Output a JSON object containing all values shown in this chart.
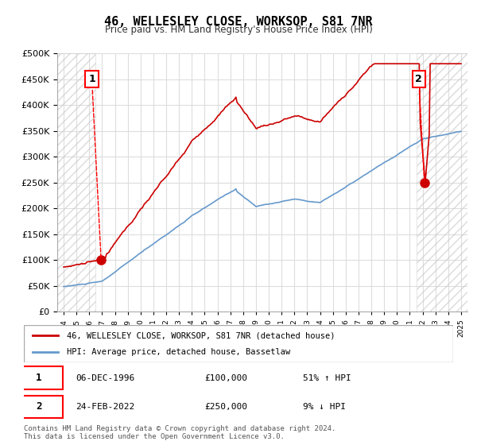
{
  "title": "46, WELLESLEY CLOSE, WORKSOP, S81 7NR",
  "subtitle": "Price paid vs. HM Land Registry's House Price Index (HPI)",
  "legend_line1": "46, WELLESLEY CLOSE, WORKSOP, S81 7NR (detached house)",
  "legend_line2": "HPI: Average price, detached house, Bassetlaw",
  "annotation1_label": "1",
  "annotation1_date": "06-DEC-1996",
  "annotation1_price": "£100,000",
  "annotation1_hpi": "51% ↑ HPI",
  "annotation2_label": "2",
  "annotation2_date": "24-FEB-2022",
  "annotation2_price": "£250,000",
  "annotation2_hpi": "9% ↓ HPI",
  "footer": "Contains HM Land Registry data © Crown copyright and database right 2024.\nThis data is licensed under the Open Government Licence v3.0.",
  "sale1_x": 1996.92,
  "sale1_y": 100000,
  "sale2_x": 2022.14,
  "sale2_y": 250000,
  "ylim": [
    0,
    500000
  ],
  "xlim": [
    1993.5,
    2025.5
  ],
  "hatch_end_x": 1996.5,
  "hatch_start_x2": 2021.5,
  "red_line_color": "#cc0000",
  "blue_line_color": "#6699cc",
  "bg_color": "#ffffff",
  "hatch_color": "#cccccc"
}
